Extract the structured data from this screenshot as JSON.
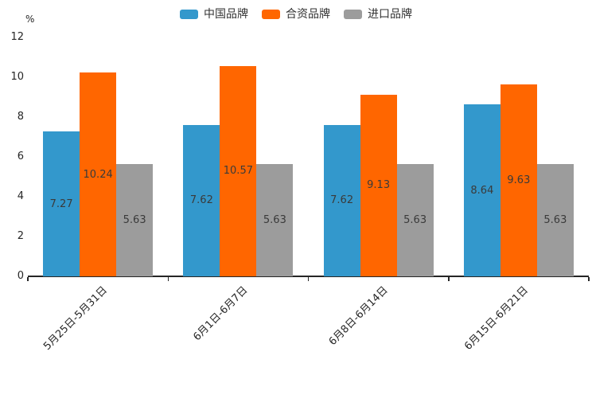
{
  "chart_data": {
    "type": "bar",
    "title": "",
    "unit_label": "%",
    "categories": [
      "5月25日-5月31日",
      "6月1日-6月7日",
      "6月8日-6月14日",
      "6月15日-6月21日"
    ],
    "series": [
      {
        "name": "中国品牌",
        "color": "#3398CC",
        "values": [
          7.27,
          7.62,
          7.62,
          8.64
        ]
      },
      {
        "name": "合资品牌",
        "color": "#FF6600",
        "values": [
          10.24,
          10.57,
          9.13,
          9.63
        ]
      },
      {
        "name": "进口品牌",
        "color": "#9C9C9C",
        "values": [
          5.63,
          5.63,
          5.63,
          5.63
        ]
      }
    ],
    "y_axis": {
      "min": 0,
      "max": 12,
      "step": 2,
      "tick_labels": [
        "0",
        "2",
        "4",
        "6",
        "8",
        "10",
        "12"
      ]
    },
    "legend_position": "top",
    "grid": false,
    "value_labels": true,
    "axis_color": "#262626"
  }
}
